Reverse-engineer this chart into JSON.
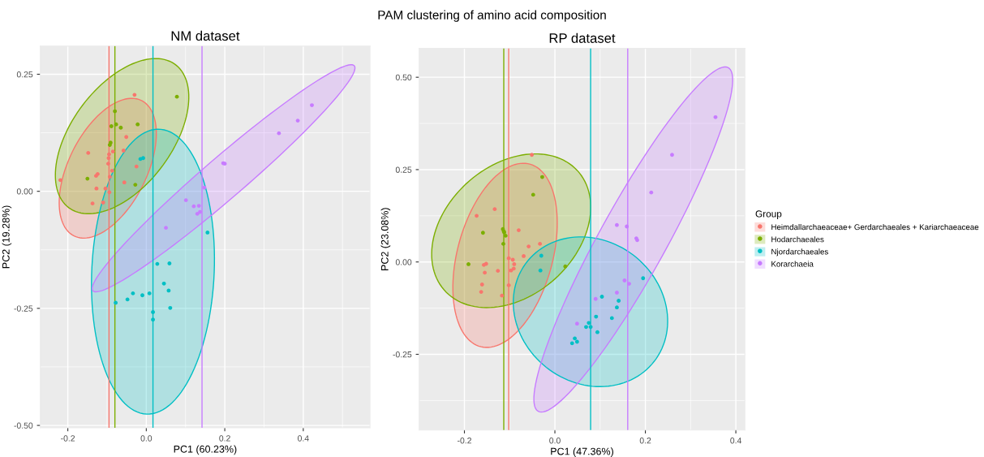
{
  "chart_data": [
    {
      "type": "scatter",
      "title": "NM dataset",
      "xlabel": "PC1 (60.23%)",
      "ylabel": "PC2 (19.28%)",
      "annotations": [
        "PAM clustering of amino acid composition"
      ],
      "xlim": [
        -0.27,
        0.57
      ],
      "ylim": [
        -0.505,
        0.31
      ],
      "xticks": [
        {
          "value": -0.2,
          "label": "-0.2"
        },
        {
          "value": 0.0,
          "label": "0.0"
        },
        {
          "value": 0.2,
          "label": "0.2"
        },
        {
          "value": 0.4,
          "label": "0.4"
        }
      ],
      "yticks": [
        {
          "value": 0.25,
          "label": "0.25"
        },
        {
          "value": 0.0,
          "label": "0.00"
        },
        {
          "value": -0.25,
          "label": "-0.25"
        },
        {
          "value": -0.5,
          "label": "-0.50"
        }
      ],
      "grid": true,
      "marker": "circle",
      "series": [
        {
          "color": "#f8766d",
          "x": [
            -0.219,
            -0.148,
            -0.03,
            -0.051,
            -0.058,
            -0.085,
            -0.095,
            -0.096,
            -0.097,
            -0.087,
            -0.093,
            -0.128,
            -0.124,
            -0.127,
            -0.104,
            -0.094,
            -0.137,
            -0.11,
            -0.056,
            -0.025
          ],
          "values": [
            0.024,
            0.082,
            0.206,
            0.116,
            0.087,
            0.085,
            0.079,
            0.071,
            0.059,
            0.044,
            0.031,
            0.033,
            0.037,
            0.006,
            0.006,
            -0.002,
            -0.026,
            -0.024,
            0.019,
            0.053
          ]
        },
        {
          "color": "#7cae00",
          "x": [
            -0.08,
            -0.089,
            -0.077,
            -0.065,
            -0.022,
            0.078,
            -0.091,
            -0.093,
            -0.15,
            -0.028
          ],
          "values": [
            0.171,
            0.139,
            0.143,
            0.136,
            0.143,
            0.202,
            0.104,
            0.099,
            0.027,
            0.014
          ]
        },
        {
          "color": "#00bfc4",
          "x": [
            -0.015,
            -0.008,
            0.156,
            0.028,
            0.059,
            0.045,
            0.057,
            0.061,
            0.017,
            0.017,
            0.008,
            -0.01,
            -0.034,
            -0.048,
            -0.078
          ],
          "values": [
            0.069,
            0.071,
            -0.088,
            -0.155,
            -0.154,
            -0.197,
            -0.212,
            -0.249,
            -0.258,
            -0.274,
            -0.218,
            -0.222,
            -0.218,
            -0.231,
            -0.238
          ]
        },
        {
          "color": "#c77cff",
          "x": [
            0.422,
            0.386,
            0.338,
            0.196,
            0.2,
            0.148,
            0.101,
            0.121,
            0.134,
            0.13,
            0.137,
            0.05
          ],
          "values": [
            0.184,
            0.151,
            0.124,
            0.06,
            0.059,
            0.008,
            -0.019,
            -0.032,
            -0.031,
            -0.048,
            -0.044,
            -0.078
          ]
        }
      ],
      "ref_lines": [
        {
          "axis": "x",
          "value": -0.095,
          "color": "#f8766d"
        },
        {
          "axis": "x",
          "value": -0.08,
          "color": "#7cae00"
        },
        {
          "axis": "x",
          "value": 0.017,
          "color": "#00bfc4"
        },
        {
          "axis": "x",
          "value": 0.142,
          "color": "#c77cff"
        }
      ]
    },
    {
      "type": "scatter",
      "title": "RP dataset",
      "xlabel": "PC1 (47.36%)",
      "ylabel": "PC2 (23.08%)",
      "legend_title": "Group",
      "xlim": [
        -0.3,
        0.42
      ],
      "ylim": [
        -0.455,
        0.578
      ],
      "xticks": [
        {
          "value": -0.2,
          "label": "-0.2"
        },
        {
          "value": 0.0,
          "label": "0.0"
        },
        {
          "value": 0.2,
          "label": "0.2"
        },
        {
          "value": 0.4,
          "label": "0.4"
        }
      ],
      "yticks": [
        {
          "value": 0.5,
          "label": "0.50"
        },
        {
          "value": 0.25,
          "label": "0.25"
        },
        {
          "value": 0.0,
          "label": "0.00"
        },
        {
          "value": -0.25,
          "label": "-0.25"
        }
      ],
      "grid": true,
      "legend": "right",
      "marker": "circle",
      "series": [
        {
          "name": "Heimdallarchaeaceae+ Gerdarchaeales + Kariarchaeaceae",
          "color": "#f8766d",
          "x": [
            -0.051,
            -0.133,
            -0.173,
            -0.08,
            -0.033,
            -0.058,
            -0.069,
            -0.102,
            -0.093,
            -0.09,
            -0.091,
            -0.097,
            -0.126,
            -0.157,
            -0.152,
            -0.155,
            -0.161,
            -0.163,
            -0.102,
            -0.117
          ],
          "values": [
            0.29,
            0.143,
            0.125,
            0.086,
            0.049,
            0.042,
            0.016,
            0.01,
            0.006,
            -0.006,
            -0.018,
            -0.023,
            -0.024,
            -0.008,
            -0.005,
            -0.029,
            -0.061,
            -0.081,
            -0.063,
            -0.091
          ]
        },
        {
          "name": "Hodarchaeales",
          "color": "#7cae00",
          "x": [
            -0.028,
            -0.048,
            -0.159,
            -0.115,
            -0.113,
            -0.112,
            -0.109,
            -0.114,
            -0.191,
            0.023
          ],
          "values": [
            0.23,
            0.182,
            0.079,
            0.089,
            0.083,
            0.08,
            0.071,
            0.049,
            -0.006,
            -0.012
          ]
        },
        {
          "name": "Njordarchaeales",
          "color": "#00bfc4",
          "x": [
            -0.03,
            -0.032,
            0.195,
            0.104,
            0.141,
            0.137,
            0.091,
            0.126,
            0.075,
            0.069,
            0.079,
            0.094,
            0.044,
            0.049,
            0.038
          ],
          "values": [
            0.017,
            -0.023,
            -0.044,
            -0.094,
            -0.105,
            -0.123,
            -0.148,
            -0.152,
            -0.165,
            -0.176,
            -0.176,
            -0.19,
            -0.207,
            -0.216,
            -0.22
          ]
        },
        {
          "name": "Korarchaeia",
          "color": "#c77cff",
          "x": [
            0.355,
            0.259,
            0.213,
            0.137,
            0.159,
            0.18,
            0.182,
            0.154,
            0.164,
            0.137,
            0.09,
            0.049
          ],
          "values": [
            0.392,
            0.29,
            0.188,
            0.1,
            0.096,
            0.064,
            0.059,
            -0.05,
            -0.059,
            -0.083,
            -0.1,
            -0.167
          ]
        }
      ],
      "ref_lines": [
        {
          "axis": "x",
          "value": -0.102,
          "color": "#f8766d"
        },
        {
          "axis": "x",
          "value": -0.113,
          "color": "#7cae00"
        },
        {
          "axis": "x",
          "value": 0.079,
          "color": "#00bfc4"
        },
        {
          "axis": "x",
          "value": 0.161,
          "color": "#c77cff"
        }
      ]
    }
  ]
}
